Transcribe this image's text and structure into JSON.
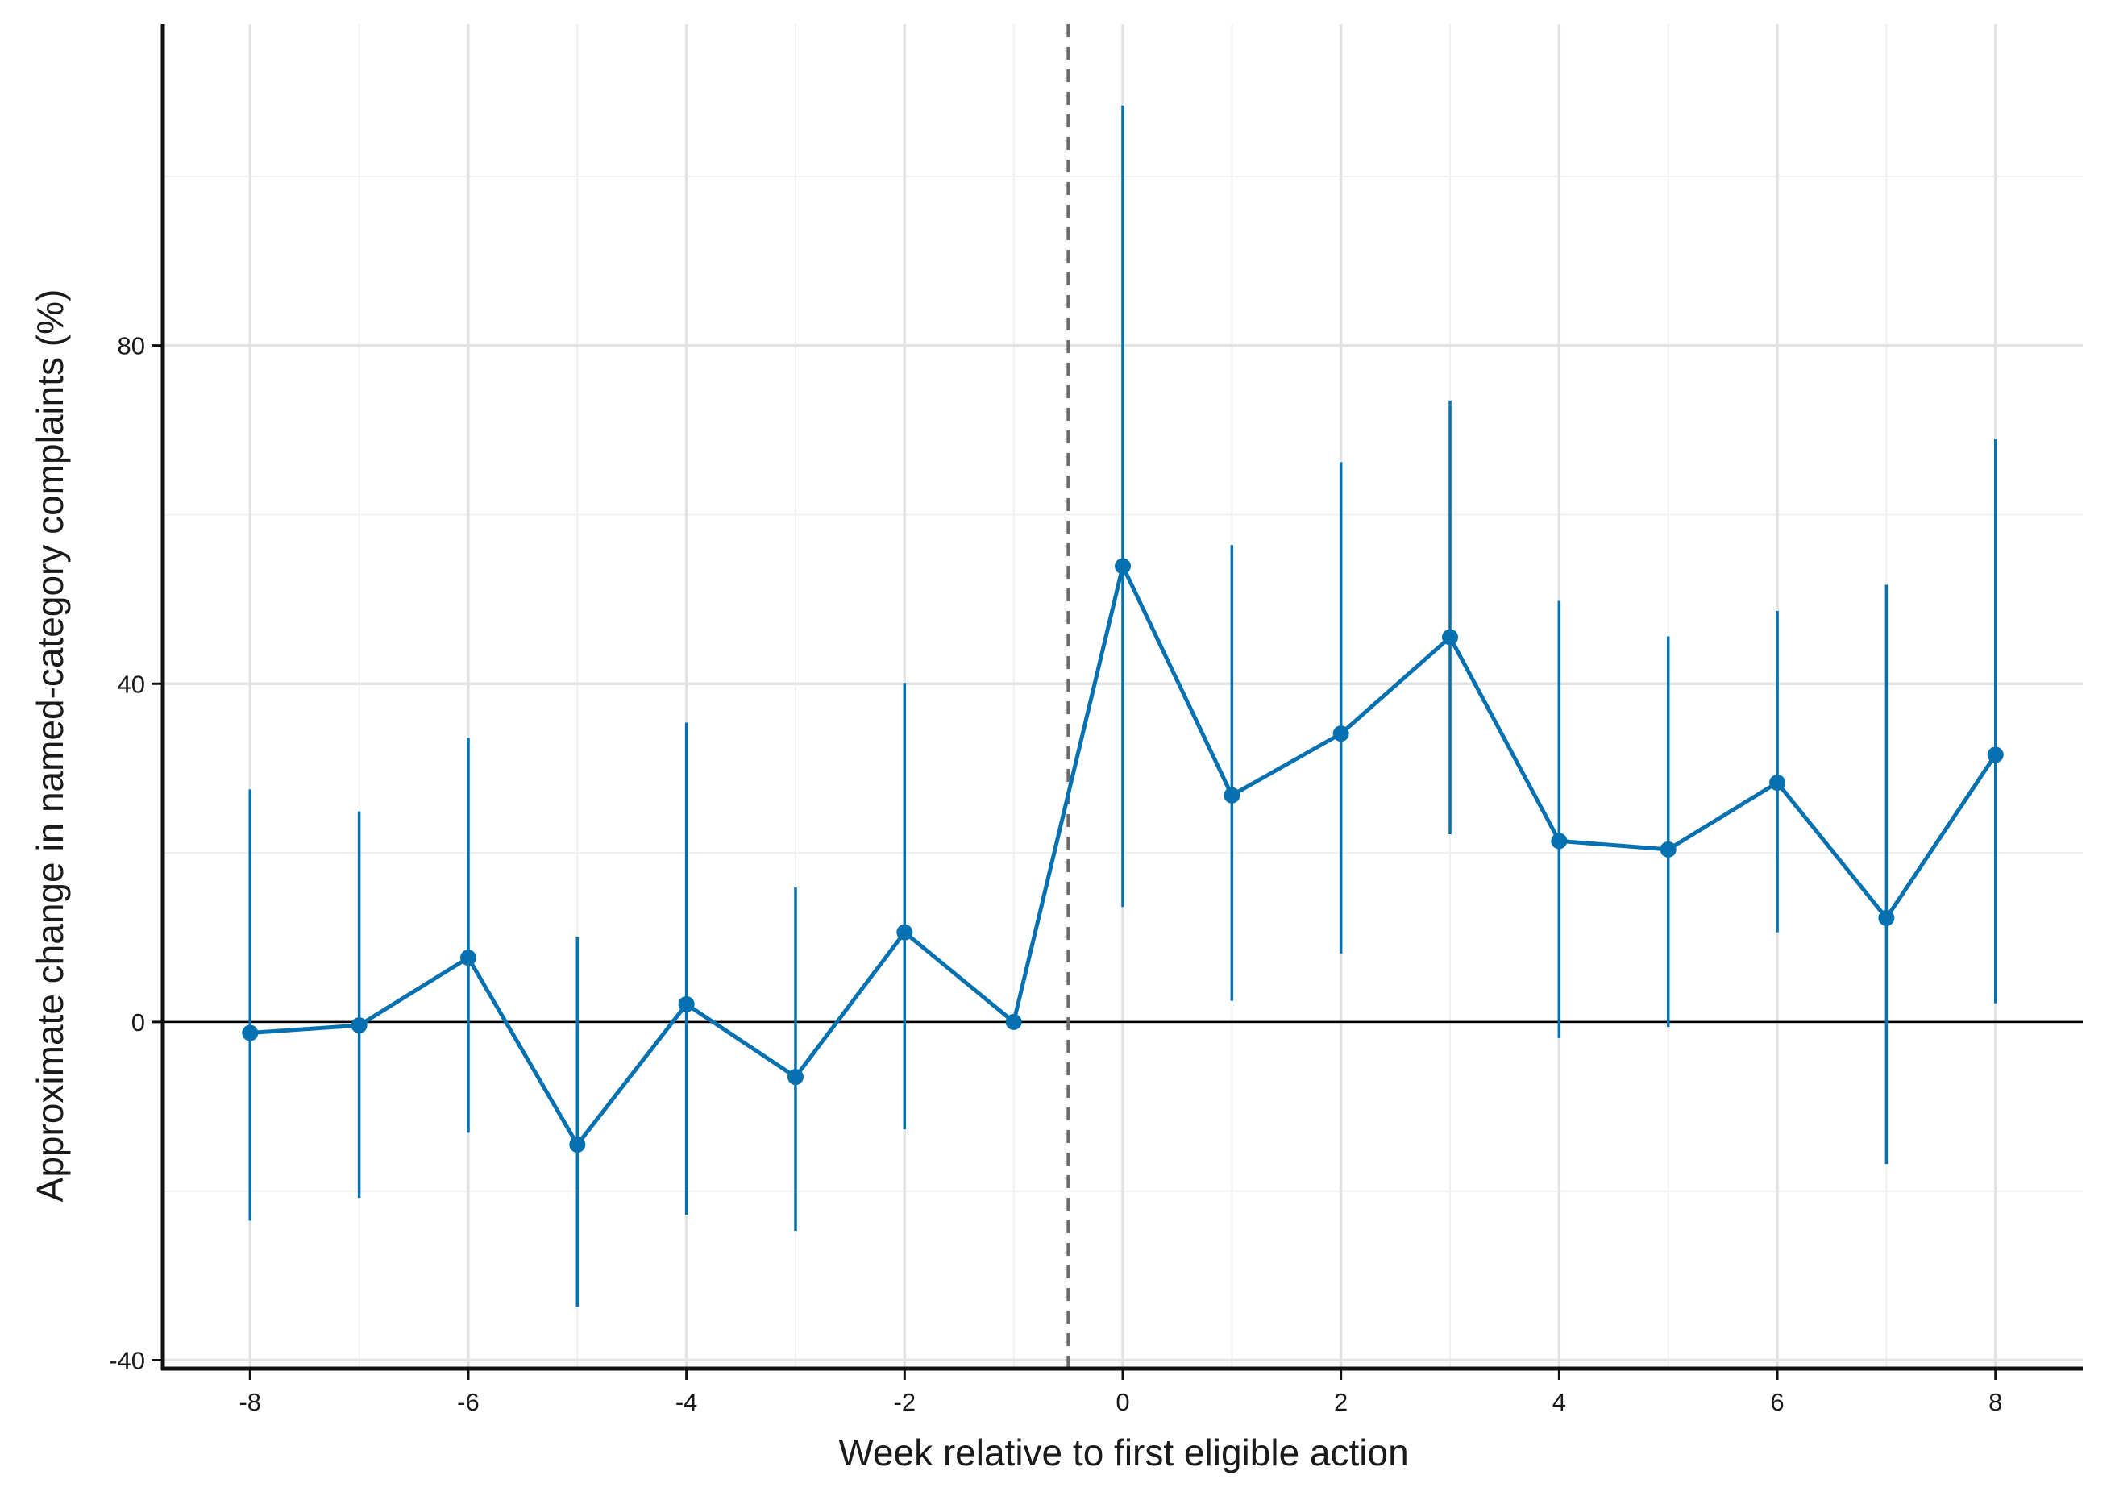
{
  "chart_data": {
    "type": "line",
    "xlabel": "Week relative to first eligible action",
    "ylabel": "Approximate change in named-category complaints (%)",
    "x_ticks": [
      "-8",
      "-6",
      "-4",
      "-2",
      "0",
      "2",
      "4",
      "6",
      "8"
    ],
    "y_ticks": [
      "-40",
      "0",
      "40",
      "80"
    ],
    "xlim": [
      -8.8,
      8.8
    ],
    "ylim": [
      -41,
      118
    ],
    "grid": true,
    "reference_hline": 0,
    "reference_vline": -0.5,
    "series_color": "#0571b0",
    "points": [
      {
        "x": -8,
        "y": -1.3,
        "lo": -23.5,
        "hi": 27.5
      },
      {
        "x": -7,
        "y": -0.4,
        "lo": -20.8,
        "hi": 24.9
      },
      {
        "x": -6,
        "y": 7.6,
        "lo": -13.1,
        "hi": 33.6
      },
      {
        "x": -5,
        "y": -14.5,
        "lo": -33.7,
        "hi": 10.0
      },
      {
        "x": -4,
        "y": 2.1,
        "lo": -22.8,
        "hi": 35.4
      },
      {
        "x": -3,
        "y": -6.5,
        "lo": -24.7,
        "hi": 15.9
      },
      {
        "x": -2,
        "y": 10.6,
        "lo": -12.7,
        "hi": 40.1
      },
      {
        "x": -1,
        "y": 0.0,
        "lo": 0.0,
        "hi": 0.0
      },
      {
        "x": 0,
        "y": 53.9,
        "lo": 13.6,
        "hi": 108.4
      },
      {
        "x": 1,
        "y": 26.8,
        "lo": 2.5,
        "hi": 56.4
      },
      {
        "x": 2,
        "y": 34.1,
        "lo": 8.1,
        "hi": 66.2
      },
      {
        "x": 3,
        "y": 45.5,
        "lo": 22.2,
        "hi": 73.5
      },
      {
        "x": 4,
        "y": 21.4,
        "lo": -1.9,
        "hi": 49.8
      },
      {
        "x": 5,
        "y": 20.4,
        "lo": -0.6,
        "hi": 45.6
      },
      {
        "x": 6,
        "y": 28.3,
        "lo": 10.6,
        "hi": 48.6
      },
      {
        "x": 7,
        "y": 12.3,
        "lo": -16.8,
        "hi": 51.7
      },
      {
        "x": 8,
        "y": 31.6,
        "lo": 2.2,
        "hi": 68.9
      }
    ]
  }
}
